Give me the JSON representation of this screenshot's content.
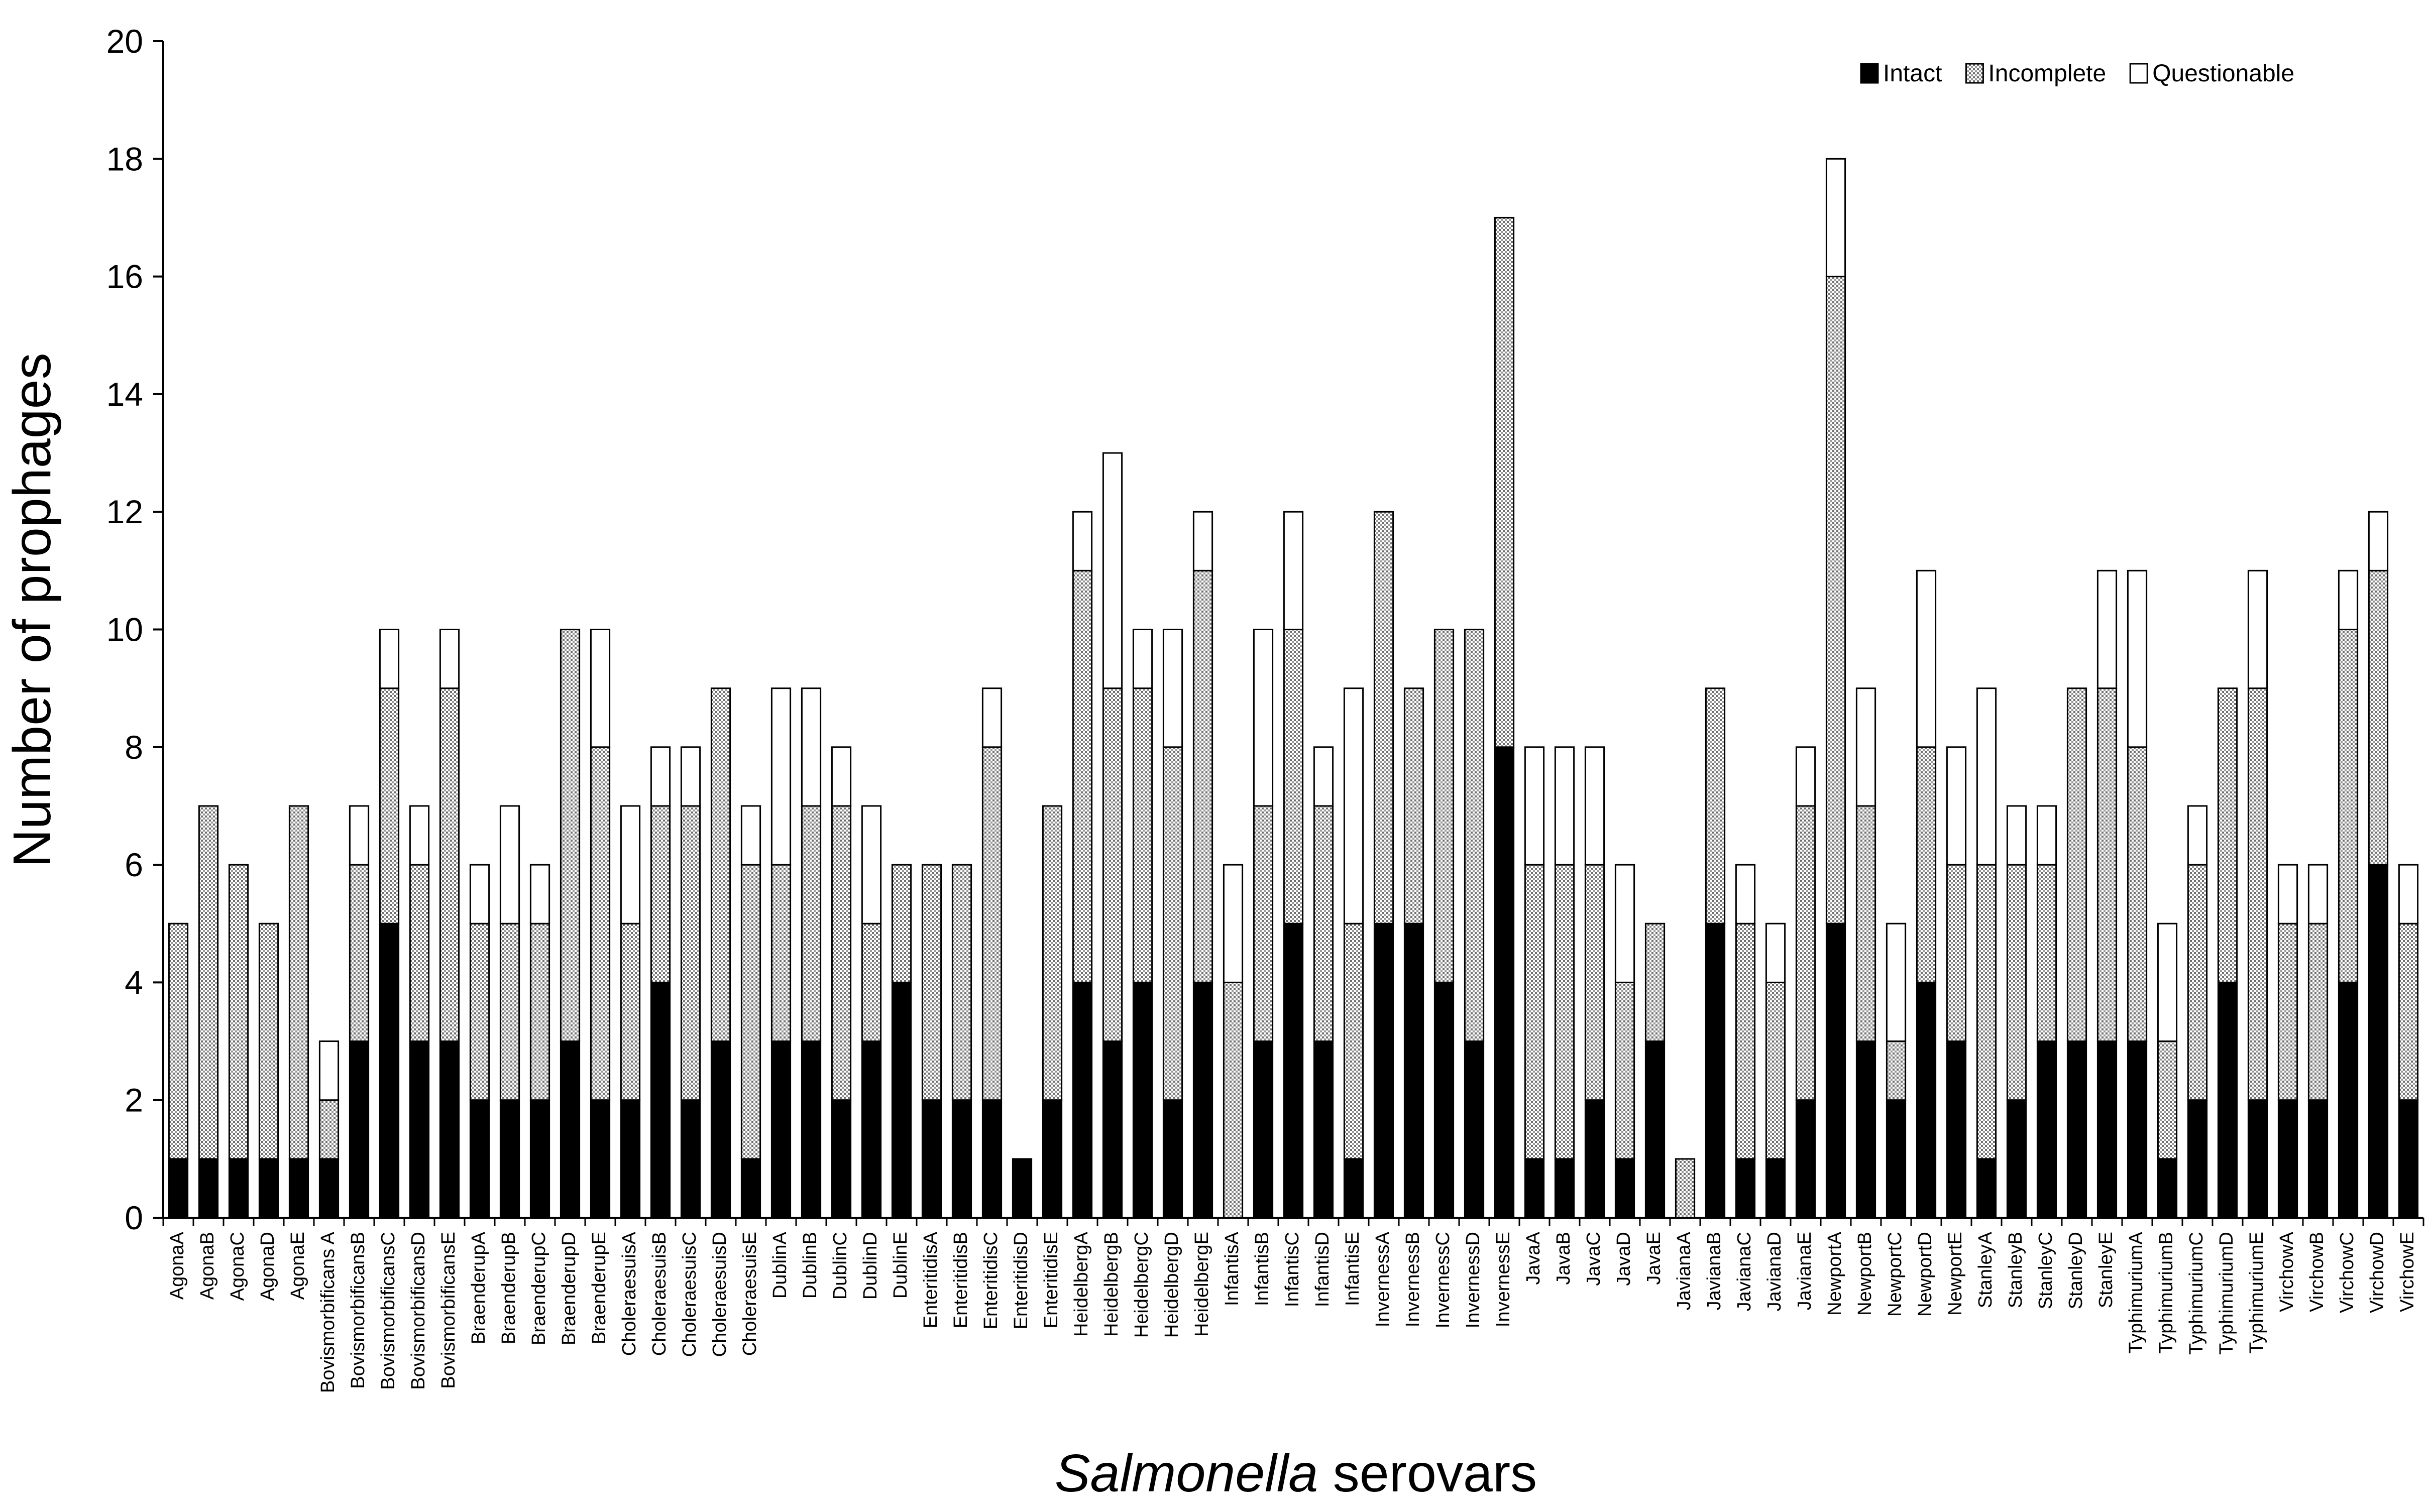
{
  "chart_data": {
    "type": "bar",
    "stacked": true,
    "title": "",
    "xlabel_italic": "Salmonella",
    "xlabel_rest": " serovars",
    "ylabel": "Number of prophages",
    "ylim": [
      0,
      20
    ],
    "yticks": [
      0,
      2,
      4,
      6,
      8,
      10,
      12,
      14,
      16,
      18,
      20
    ],
    "grid": false,
    "legend_position": "top-right",
    "categories": [
      "AgonaA",
      "AgonaB",
      "AgonaC",
      "AgonaD",
      "AgonaE",
      "Bovismorbificans A",
      "BovismorbificansB",
      "BovismorbificansC",
      "BovismorbificansD",
      "BovismorbificansE",
      "BraenderupA",
      "BraenderupB",
      "BraenderupC",
      "BraenderupD",
      "BraenderupE",
      "CholeraesuisA",
      "CholeraesuisB",
      "CholeraesuisC",
      "CholeraesuisD",
      "CholeraesuisE",
      "DublinA",
      "DublinB",
      "DublinC",
      "DublinD",
      "DublinE",
      "EnteritidisA",
      "EnteritidisB",
      "EnteritidisC",
      "EnteritidisD",
      "EnteritidisE",
      "HeidelbergA",
      "HeidelbergB",
      "HeidelbergC",
      "HeidelbergD",
      "HeidelbergE",
      "InfantisA",
      "InfantisB",
      "InfantisC",
      "InfantisD",
      "InfantisE",
      "InvernessA",
      "InvernessB",
      "InvernessC",
      "InvernessD",
      "InvernessE",
      "JavaA",
      "JavaB",
      "JavaC",
      "JavaD",
      "JavaE",
      "JavianaA",
      "JavianaB",
      "JavianaC",
      "JavianaD",
      "JavianaE",
      "NewportA",
      "NewportB",
      "NewportC",
      "NewportD",
      "NewportE",
      "StanleyA",
      "StanleyB",
      "StanleyC",
      "StanleyD",
      "StanleyE",
      "TyphimuriumA",
      "TyphimuriumB",
      "TyphimuriumC",
      "TyphimuriumD",
      "TyphimuriumE",
      "VirchowA",
      "VirchowB",
      "VirchowC",
      "VirchowD",
      "VirchowE"
    ],
    "series": [
      {
        "name": "Intact",
        "color": "#000000",
        "values": [
          1,
          1,
          1,
          1,
          1,
          1,
          3,
          5,
          3,
          3,
          2,
          2,
          2,
          3,
          2,
          2,
          4,
          2,
          3,
          1,
          3,
          3,
          2,
          3,
          4,
          2,
          2,
          2,
          1,
          2,
          4,
          3,
          4,
          2,
          4,
          0,
          3,
          5,
          3,
          1,
          5,
          5,
          4,
          3,
          8,
          1,
          1,
          2,
          1,
          3,
          0,
          5,
          1,
          1,
          2,
          5,
          3,
          2,
          4,
          3,
          1,
          2,
          3,
          3,
          3,
          3,
          1,
          2,
          4,
          2,
          2,
          2,
          4,
          6,
          2
        ]
      },
      {
        "name": "Incomplete",
        "color": "#d9d9d9",
        "values": [
          4,
          6,
          5,
          4,
          6,
          1,
          3,
          4,
          3,
          6,
          3,
          3,
          3,
          7,
          6,
          3,
          3,
          5,
          6,
          5,
          3,
          4,
          5,
          2,
          2,
          4,
          4,
          6,
          0,
          5,
          7,
          6,
          5,
          6,
          7,
          4,
          4,
          5,
          4,
          4,
          7,
          4,
          6,
          7,
          9,
          5,
          5,
          4,
          3,
          2,
          1,
          4,
          4,
          3,
          5,
          11,
          4,
          1,
          4,
          3,
          5,
          4,
          3,
          6,
          6,
          5,
          2,
          4,
          5,
          7,
          3,
          3,
          6,
          5,
          3
        ]
      },
      {
        "name": "Questionable",
        "color": "#ffffff",
        "values": [
          0,
          0,
          0,
          0,
          0,
          1,
          1,
          1,
          1,
          1,
          1,
          2,
          1,
          0,
          2,
          2,
          1,
          1,
          0,
          1,
          3,
          2,
          1,
          2,
          0,
          0,
          0,
          1,
          0,
          0,
          1,
          4,
          1,
          2,
          1,
          2,
          3,
          2,
          1,
          4,
          0,
          0,
          0,
          0,
          0,
          2,
          2,
          2,
          2,
          0,
          0,
          0,
          1,
          1,
          1,
          2,
          2,
          2,
          3,
          2,
          3,
          1,
          1,
          0,
          2,
          3,
          2,
          1,
          0,
          2,
          1,
          1,
          1,
          1,
          1
        ]
      }
    ]
  }
}
